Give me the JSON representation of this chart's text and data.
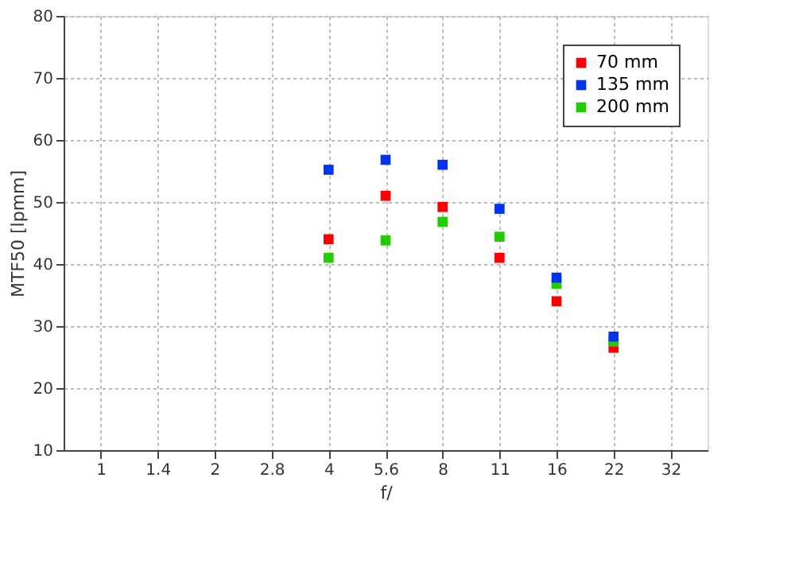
{
  "chart_data": {
    "type": "scatter",
    "xlabel": "f/",
    "ylabel": "MTF50 [lpmm]",
    "categories": [
      "1",
      "1.4",
      "2",
      "2.8",
      "4",
      "5.6",
      "8",
      "11",
      "16",
      "22",
      "32"
    ],
    "series": [
      {
        "name": "70 mm",
        "color": "#ff0000",
        "values": [
          null,
          null,
          null,
          null,
          44,
          51,
          49.2,
          41,
          34,
          26.5,
          null
        ]
      },
      {
        "name": "135 mm",
        "color": "#0033ee",
        "values": [
          null,
          null,
          null,
          null,
          55.2,
          56.8,
          56,
          48.9,
          37.8,
          28.3,
          null
        ]
      },
      {
        "name": "200 mm",
        "color": "#22cc00",
        "values": [
          null,
          null,
          null,
          null,
          41,
          43.8,
          46.8,
          44.4,
          36.8,
          27.5,
          null
        ]
      }
    ],
    "ylim": [
      10,
      80
    ],
    "yticks": [
      10,
      20,
      30,
      40,
      50,
      60,
      70,
      80
    ],
    "grid": true,
    "legend": "top right",
    "marker": "square"
  }
}
